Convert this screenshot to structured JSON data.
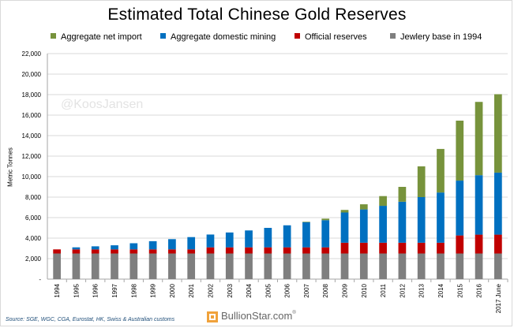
{
  "chart_data": {
    "type": "bar",
    "stacked": true,
    "title": "Estimated Total Chinese Gold Reserves",
    "ylabel": "Metric Tonnes",
    "ylim": [
      0,
      22000
    ],
    "yticks": [
      "-",
      "2,000",
      "4,000",
      "6,000",
      "8,000",
      "10,000",
      "12,000",
      "14,000",
      "16,000",
      "18,000",
      "20,000",
      "22,000"
    ],
    "grid": true,
    "legend_position": "top",
    "categories": [
      "1994",
      "1995",
      "1996",
      "1997",
      "1998",
      "1999",
      "2000",
      "2001",
      "2002",
      "2003",
      "2004",
      "2005",
      "2006",
      "2007",
      "2008",
      "2009",
      "2010",
      "2011",
      "2012",
      "2013",
      "2014",
      "2015",
      "2016",
      "2017 June"
    ],
    "series": [
      {
        "name": "Jewlery base in 1994",
        "color": "#7f7f7f",
        "values": [
          2500,
          2500,
          2500,
          2500,
          2500,
          2500,
          2500,
          2500,
          2500,
          2500,
          2500,
          2500,
          2500,
          2500,
          2500,
          2500,
          2500,
          2500,
          2500,
          2500,
          2500,
          2500,
          2500,
          2500
        ]
      },
      {
        "name": "Official reserves",
        "color": "#c00000",
        "values": [
          400,
          400,
          400,
          400,
          400,
          400,
          400,
          400,
          600,
          600,
          600,
          600,
          600,
          600,
          600,
          1050,
          1050,
          1050,
          1050,
          1050,
          1050,
          1760,
          1840,
          1840
        ]
      },
      {
        "name": "Aggregate domestic mining",
        "color": "#0070c0",
        "values": [
          0,
          200,
          300,
          400,
          600,
          800,
          1000,
          1200,
          1250,
          1450,
          1650,
          1900,
          2150,
          2450,
          2650,
          2950,
          3250,
          3600,
          4000,
          4450,
          4900,
          5350,
          5800,
          6050
        ]
      },
      {
        "name": "Aggregate net import",
        "color": "#77933c",
        "values": [
          0,
          0,
          0,
          0,
          0,
          0,
          0,
          0,
          0,
          0,
          0,
          0,
          0,
          50,
          150,
          250,
          500,
          950,
          1450,
          3000,
          4250,
          5850,
          7150,
          7650
        ]
      }
    ],
    "legend_order": [
      "Aggregate net import",
      "Aggregate domestic mining",
      "Official reserves",
      "Jewlery base in 1994"
    ]
  },
  "watermark": "@KoosJansen",
  "source": "Source: SGE, WGC, CGA, Eurostat, HK, Swiss & Australian customs",
  "brand": {
    "name": "BullionStar.com",
    "mark": "®"
  }
}
